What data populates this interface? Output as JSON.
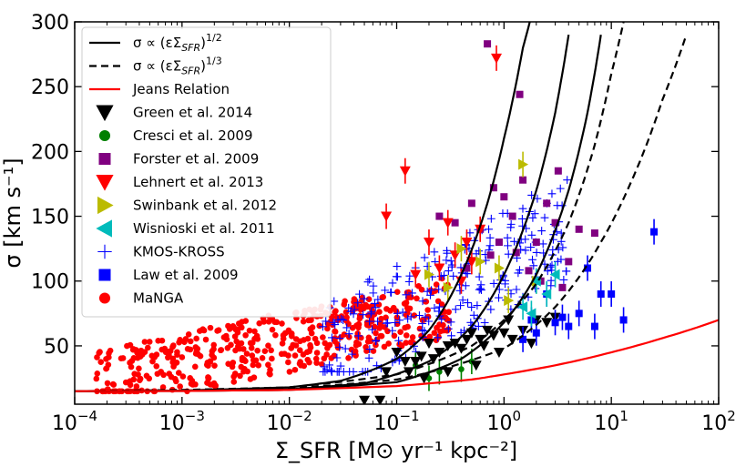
{
  "chart_data": {
    "type": "scatter",
    "title": "",
    "xlabel": "Σ_SFR [M⊙ yr⁻¹ kpc⁻²]",
    "ylabel": "σ [km s⁻¹]",
    "xscale": "log",
    "xlim": [
      0.0001,
      100
    ],
    "ylim": [
      5,
      300
    ],
    "x_ticks": [
      0.0001,
      0.001,
      0.01,
      0.1,
      1,
      10,
      100
    ],
    "x_tick_labels": [
      {
        "base": "10",
        "exp": "−4"
      },
      {
        "base": "10",
        "exp": "−3"
      },
      {
        "base": "10",
        "exp": "−2"
      },
      {
        "base": "10",
        "exp": "−1"
      },
      {
        "base": "10",
        "exp": "0"
      },
      {
        "base": "10",
        "exp": "1"
      },
      {
        "base": "10",
        "exp": "2"
      }
    ],
    "y_ticks": [
      50,
      100,
      150,
      200,
      250,
      300
    ],
    "y_tick_labels": [
      "50",
      "100",
      "150",
      "200",
      "250",
      "300"
    ],
    "legend_position": "upper-left",
    "model_lines": [
      {
        "name": "σ ∝ (εΣ_SFR)^1/2",
        "style": "solid",
        "color": "#000000",
        "x": [
          0.0001,
          0.001,
          0.01,
          0.03,
          0.1,
          0.2,
          0.4,
          0.7,
          1.0,
          1.5,
          2.0
        ],
        "y": [
          15,
          15.5,
          18,
          23,
          40,
          62,
          105,
          160,
          210,
          280,
          320
        ]
      },
      {
        "name": "σ ∝ (εΣ_SFR)^1/2",
        "style": "solid",
        "color": "#000000",
        "x": [
          0.0001,
          0.001,
          0.01,
          0.05,
          0.2,
          0.5,
          1.0,
          2.0,
          3.0,
          4.0
        ],
        "y": [
          15,
          15.3,
          16.5,
          21,
          38,
          65,
          105,
          170,
          230,
          290
        ]
      },
      {
        "name": "σ ∝ (εΣ_SFR)^1/2",
        "style": "solid",
        "color": "#000000",
        "x": [
          0.0001,
          0.001,
          0.01,
          0.1,
          0.4,
          1.0,
          2.0,
          4.0,
          6.0,
          8.0
        ],
        "y": [
          15,
          15.2,
          16,
          22,
          40,
          68,
          105,
          170,
          230,
          290
        ]
      },
      {
        "name": "σ ∝ (εΣ_SFR)^1/3",
        "style": "dashed",
        "color": "#000000",
        "x": [
          0.0001,
          0.001,
          0.01,
          0.1,
          0.5,
          1.0,
          2.0,
          4.0,
          7.0,
          10.0,
          13.0
        ],
        "y": [
          15,
          16,
          18,
          28,
          50,
          70,
          98,
          145,
          205,
          260,
          300
        ]
      },
      {
        "name": "σ ∝ (εΣ_SFR)^1/3",
        "style": "dashed",
        "color": "#000000",
        "x": [
          0.0001,
          0.001,
          0.01,
          0.1,
          1.0,
          3.0,
          8.0,
          15.0,
          30.0,
          50.0
        ],
        "y": [
          15,
          15.5,
          17,
          24,
          48,
          80,
          130,
          175,
          240,
          290
        ]
      },
      {
        "name": "Jeans Relation",
        "style": "solid",
        "color": "#ff0000",
        "x": [
          0.0001,
          0.001,
          0.01,
          0.1,
          0.5,
          1.0,
          3.0,
          10.0,
          30.0,
          100.0
        ],
        "y": [
          15,
          15.2,
          16,
          19,
          24,
          28,
          35,
          45,
          56,
          70
        ]
      }
    ],
    "series": [
      {
        "name": "Green et al. 2014",
        "marker": "triangle-down",
        "color": "#000000",
        "points": [
          [
            0.05,
            8
          ],
          [
            0.07,
            8
          ],
          [
            0.08,
            30
          ],
          [
            0.1,
            45
          ],
          [
            0.12,
            38
          ],
          [
            0.13,
            30
          ],
          [
            0.15,
            38
          ],
          [
            0.17,
            42
          ],
          [
            0.2,
            52
          ],
          [
            0.22,
            40
          ],
          [
            0.25,
            45
          ],
          [
            0.3,
            50
          ],
          [
            0.35,
            52
          ],
          [
            0.4,
            48
          ],
          [
            0.45,
            55
          ],
          [
            0.5,
            60
          ],
          [
            0.6,
            55
          ],
          [
            0.7,
            62
          ],
          [
            0.8,
            58
          ],
          [
            1.0,
            60
          ],
          [
            1.2,
            55
          ],
          [
            1.5,
            62
          ],
          [
            1.8,
            52
          ],
          [
            2.0,
            70
          ],
          [
            2.5,
            68
          ],
          [
            3.0,
            72
          ],
          [
            0.9,
            45
          ],
          [
            0.55,
            35
          ],
          [
            0.3,
            30
          ],
          [
            0.18,
            25
          ],
          [
            0.65,
            50
          ],
          [
            1.1,
            70
          ]
        ]
      },
      {
        "name": "Cresci et al. 2009",
        "marker": "circle",
        "color": "#008000",
        "points": [
          [
            0.15,
            35
          ],
          [
            0.2,
            25
          ],
          [
            0.25,
            30
          ],
          [
            0.4,
            32
          ],
          [
            0.5,
            38
          ]
        ]
      },
      {
        "name": "Forster et al. 2009",
        "marker": "square",
        "color": "#800080",
        "points": [
          [
            0.7,
            283
          ],
          [
            1.4,
            244
          ],
          [
            0.25,
            150
          ],
          [
            0.35,
            145
          ],
          [
            0.5,
            160
          ],
          [
            0.6,
            140
          ],
          [
            0.8,
            172
          ],
          [
            1.0,
            165
          ],
          [
            1.2,
            150
          ],
          [
            1.5,
            178
          ],
          [
            2.0,
            130
          ],
          [
            2.5,
            160
          ],
          [
            3.0,
            145
          ],
          [
            5.0,
            140
          ],
          [
            7.0,
            137
          ],
          [
            0.9,
            130
          ],
          [
            1.3,
            122
          ],
          [
            0.45,
            110
          ],
          [
            2.2,
            100
          ],
          [
            3.5,
            95
          ],
          [
            1.7,
            108
          ],
          [
            0.75,
            120
          ],
          [
            4.0,
            115
          ],
          [
            3.2,
            185
          ]
        ]
      },
      {
        "name": "Lehnert et al. 2013",
        "marker": "triangle-down",
        "color": "#ff0000",
        "points": [
          [
            0.85,
            272
          ],
          [
            0.12,
            185
          ],
          [
            0.08,
            150
          ],
          [
            0.3,
            145
          ],
          [
            0.45,
            130
          ],
          [
            0.6,
            140
          ],
          [
            0.2,
            130
          ],
          [
            0.35,
            120
          ],
          [
            0.5,
            115
          ],
          [
            0.25,
            110
          ],
          [
            0.15,
            105
          ],
          [
            0.4,
            100
          ]
        ]
      },
      {
        "name": "Swinbank et al. 2012",
        "marker": "triangle-right",
        "color": "#bbbb00",
        "points": [
          [
            1.5,
            190
          ],
          [
            0.4,
            125
          ],
          [
            0.6,
            115
          ],
          [
            0.9,
            110
          ],
          [
            1.1,
            85
          ],
          [
            2.0,
            100
          ],
          [
            0.3,
            95
          ],
          [
            0.2,
            105
          ]
        ]
      },
      {
        "name": "Wisnioski et al. 2011",
        "marker": "triangle-left",
        "color": "#00bbbb",
        "points": [
          [
            2.0,
            100
          ],
          [
            2.5,
            90
          ],
          [
            3.0,
            105
          ],
          [
            1.5,
            80
          ],
          [
            1.8,
            75
          ]
        ]
      },
      {
        "name": "KMOS-KROSS",
        "marker": "plus",
        "color": "#0000ff",
        "generator": {
          "count": 260,
          "xmin_log": -1.7,
          "xmax_log": 0.6,
          "ymin": 30,
          "ymax": 210,
          "seed": 11
        }
      },
      {
        "name": "Law et al. 2009",
        "marker": "square",
        "color": "#0000ff",
        "points": [
          [
            25,
            138
          ],
          [
            8,
            90
          ],
          [
            10,
            90
          ],
          [
            6,
            110
          ],
          [
            13,
            70
          ],
          [
            4,
            65
          ],
          [
            3,
            68
          ],
          [
            5,
            75
          ],
          [
            2.5,
            90
          ],
          [
            1.8,
            70
          ],
          [
            1.5,
            55
          ],
          [
            2.0,
            60
          ],
          [
            3.5,
            72
          ],
          [
            7,
            65
          ]
        ]
      },
      {
        "name": "MaNGA",
        "marker": "circle",
        "color": "#ff0000",
        "generator": {
          "count": 480,
          "xmin_log": -3.8,
          "xmax_log": -0.5,
          "ymin": 15,
          "ymax": 120,
          "seed": 5
        }
      }
    ],
    "legend": [
      {
        "label": "σ ∝ (εΣ",
        "sub": "SFR",
        "post": ")",
        "sup": "1/2",
        "kind": "line-solid-black"
      },
      {
        "label": "σ ∝ (εΣ",
        "sub": "SFR",
        "post": ")",
        "sup": "1/3",
        "kind": "line-dashed-black"
      },
      {
        "label": "Jeans Relation",
        "kind": "line-solid-red"
      },
      {
        "label": "Green et al. 2014",
        "kind": "triangle-down-black"
      },
      {
        "label": "Cresci et al. 2009",
        "kind": "circle-green"
      },
      {
        "label": "Forster et al. 2009",
        "kind": "square-purple"
      },
      {
        "label": "Lehnert et al. 2013",
        "kind": "triangle-down-red"
      },
      {
        "label": "Swinbank et al. 2012",
        "kind": "triangle-right-yellow"
      },
      {
        "label": "Wisnioski et al. 2011",
        "kind": "triangle-left-cyan"
      },
      {
        "label": "KMOS-KROSS",
        "kind": "plus-blue"
      },
      {
        "label": "Law et al. 2009",
        "kind": "square-blue"
      },
      {
        "label": "MaNGA",
        "kind": "circle-red"
      }
    ]
  }
}
